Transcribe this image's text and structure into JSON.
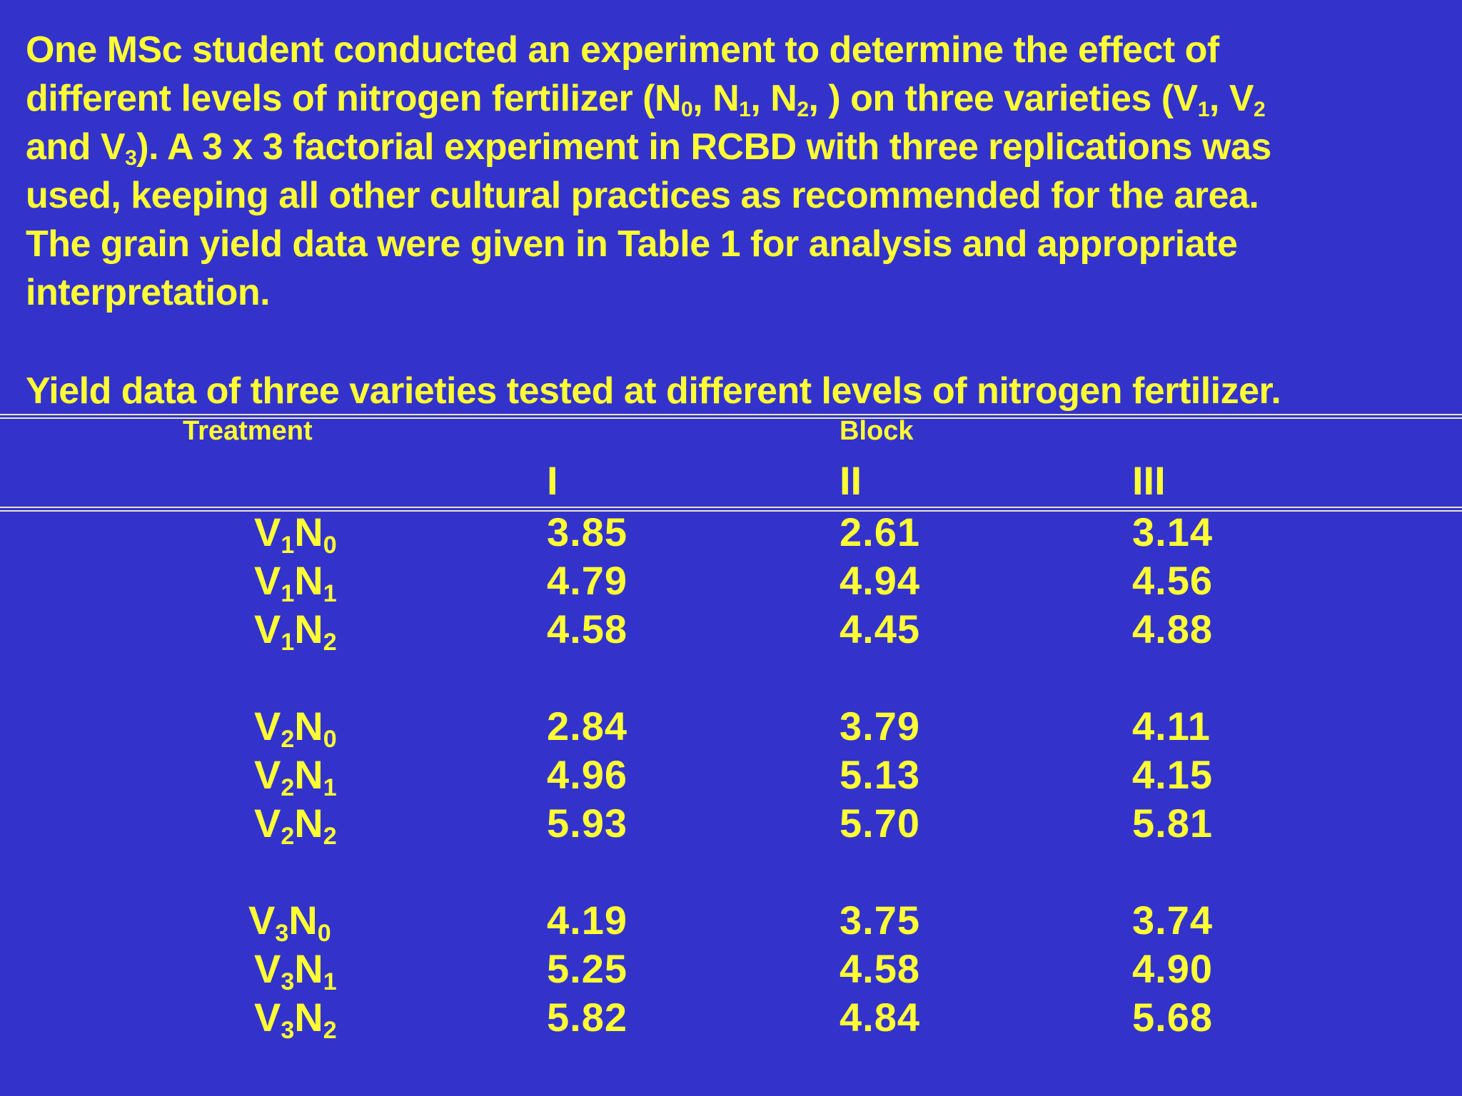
{
  "colors": {
    "background": "#3333CC",
    "text": "#FFFF33",
    "rule": "#E8E8C8"
  },
  "intro": {
    "line1": "One MSc student conducted an experiment to determine the effect of",
    "line2_a": "different levels of nitrogen fertilizer (N",
    "line2_b": "0",
    "line2_c": ", N",
    "line2_d": "1",
    "line2_e": ", N",
    "line2_f": "2",
    "line2_g": ", ) on three varieties (V",
    "line2_h": "1",
    "line2_i": ", V",
    "line2_j": "2",
    "line3_a": "and V",
    "line3_b": "3",
    "line3_c": "). A 3 x 3 factorial experiment in RCBD with three replications was",
    "line4": "used, keeping all other cultural practices as recommended for the area.",
    "line5": "The grain yield data were given in Table 1 for analysis and appropriate",
    "line6": "interpretation."
  },
  "table_title": "Yield data of three varieties tested at different levels of nitrogen fertilizer.",
  "table": {
    "treatment_header": "Treatment",
    "block_header": "Block",
    "block_labels": [
      "I",
      "II",
      "III"
    ],
    "rows": [
      {
        "v": "V",
        "vs": "1",
        "n": "N",
        "ns": "0",
        "values": [
          "3.85",
          "2.61",
          "3.14"
        ]
      },
      {
        "v": "V",
        "vs": "1",
        "n": "N",
        "ns": "1",
        "values": [
          "4.79",
          "4.94",
          "4.56"
        ]
      },
      {
        "v": "V",
        "vs": "1",
        "n": "N",
        "ns": "2",
        "values": [
          "4.58",
          "4.45",
          "4.88"
        ]
      },
      {
        "v": "V",
        "vs": "2",
        "n": "N",
        "ns": "0",
        "values": [
          "2.84",
          "3.79",
          "4.11"
        ]
      },
      {
        "v": "V",
        "vs": "2",
        "n": "N",
        "ns": "1",
        "values": [
          "4.96",
          "5.13",
          "4.15"
        ]
      },
      {
        "v": "V",
        "vs": "2",
        "n": "N",
        "ns": "2",
        "values": [
          "5.93",
          "5.70",
          "5.81"
        ]
      },
      {
        "v": "V",
        "vs": "3",
        "n": "N",
        "ns": "0",
        "values": [
          "4.19",
          "3.75",
          "3.74"
        ]
      },
      {
        "v": "V",
        "vs": "3",
        "n": "N",
        "ns": "1",
        "values": [
          "5.25",
          "4.58",
          "4.90"
        ]
      },
      {
        "v": "V",
        "vs": "3",
        "n": "N",
        "ns": "2",
        "values": [
          "5.82",
          "4.84",
          "5.68"
        ]
      }
    ]
  }
}
